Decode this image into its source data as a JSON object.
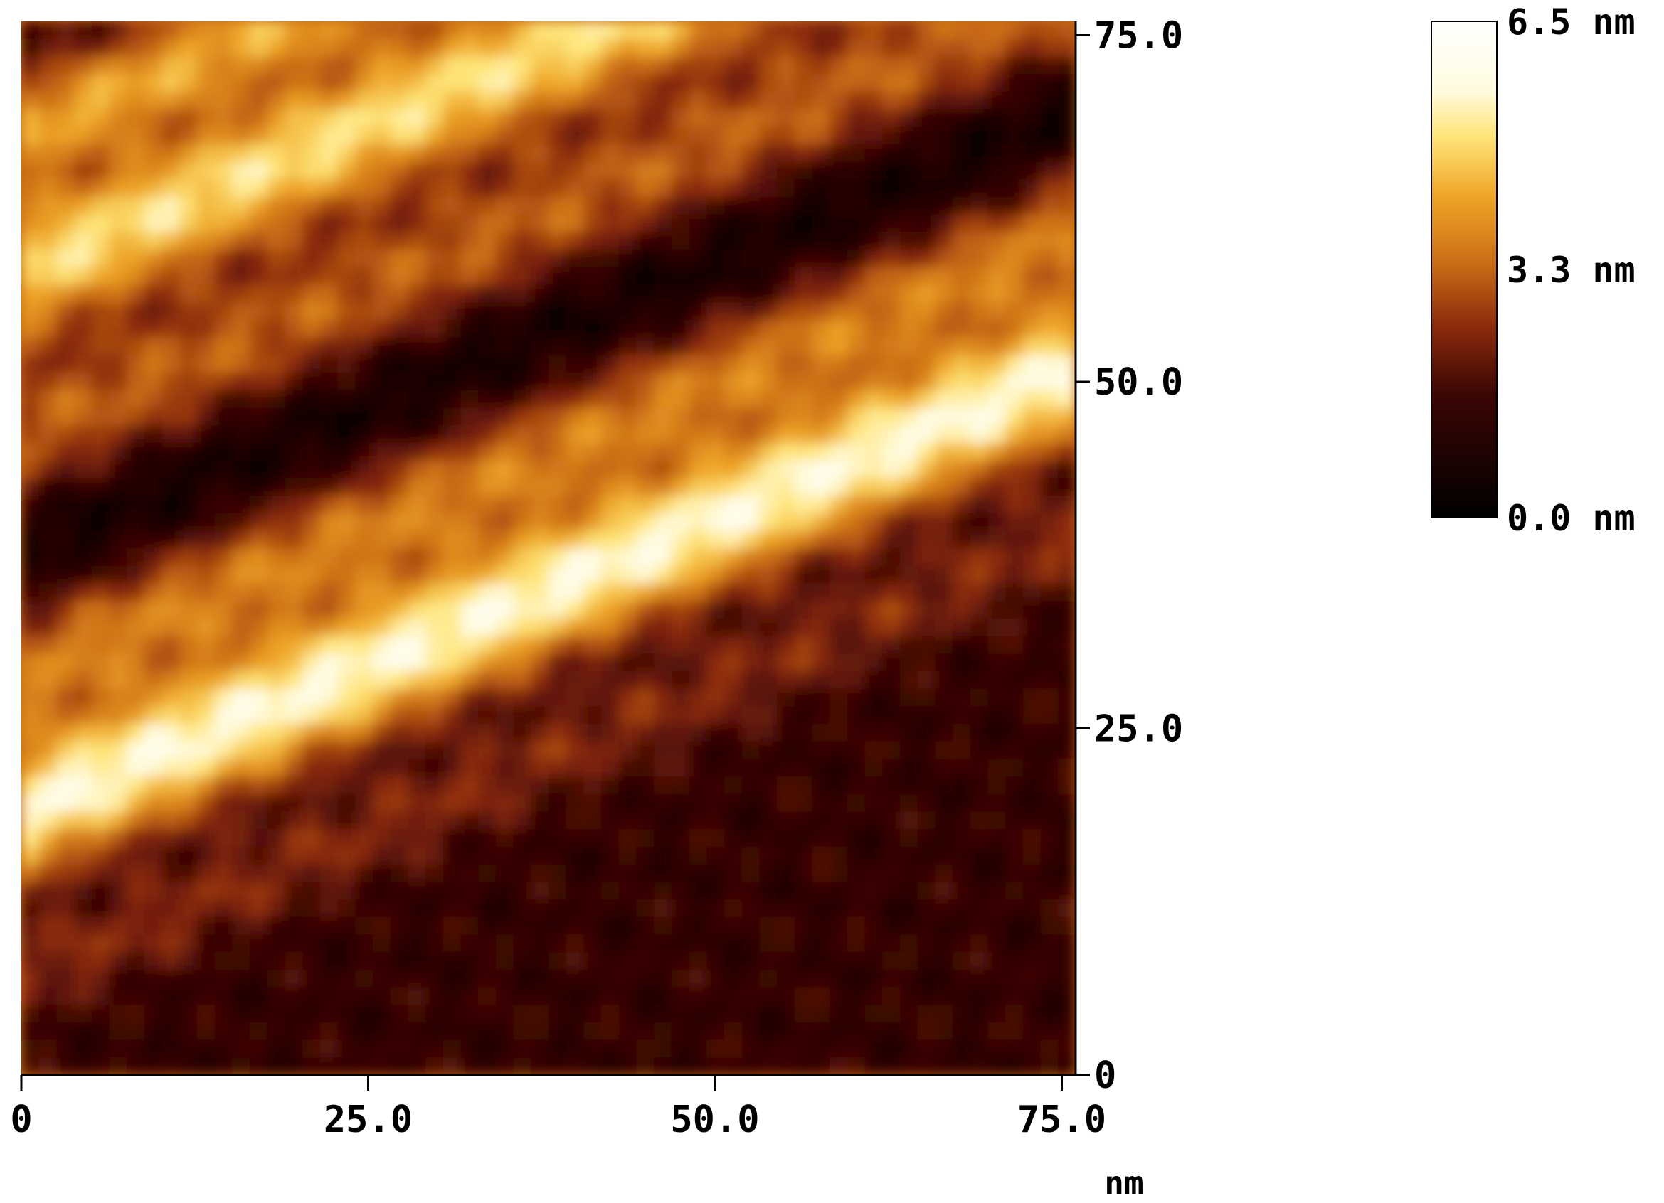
{
  "chart_data": {
    "type": "heatmap",
    "title": "",
    "x_axis": {
      "range": [
        0,
        76
      ],
      "ticks": [
        0,
        25,
        50,
        75
      ],
      "tick_labels": [
        "0",
        "25.0",
        "50.0",
        "75.0"
      ],
      "unit_label": "nm"
    },
    "y_axis": {
      "range": [
        0,
        76
      ],
      "ticks": [
        0,
        25,
        50,
        75
      ],
      "tick_labels": [
        "0",
        "25.0",
        "50.0",
        "75.0"
      ],
      "side": "right"
    },
    "colorbar": {
      "range": [
        0.0,
        6.5
      ],
      "unit": "nm",
      "labels": [
        "6.5 nm",
        "3.3 nm",
        "0.0 nm"
      ],
      "colormap": [
        {
          "value": 0.0,
          "color": "#000000"
        },
        {
          "value": 1.6,
          "color": "#3a0604"
        },
        {
          "value": 2.5,
          "color": "#8a2a0c"
        },
        {
          "value": 3.3,
          "color": "#c96a15"
        },
        {
          "value": 4.2,
          "color": "#eea526"
        },
        {
          "value": 5.0,
          "color": "#ffe57a"
        },
        {
          "value": 5.6,
          "color": "#fffbe0"
        },
        {
          "value": 6.5,
          "color": "#ffffff"
        }
      ]
    },
    "surface_features": {
      "terrace_slope": 0.42,
      "bands": [
        {
          "center": 7,
          "width": 3.5,
          "height": 2.4
        },
        {
          "center": 19,
          "width": 5.0,
          "height": 5.6
        },
        {
          "center": 29,
          "width": 4.5,
          "height": 3.6
        },
        {
          "center": 38,
          "width": 4.5,
          "height": 0.5
        },
        {
          "center": 46,
          "width": 5.0,
          "height": 3.2
        },
        {
          "center": 58,
          "width": 5.0,
          "height": 5.0
        },
        {
          "center": 68,
          "width": 4.0,
          "height": 4.2
        },
        {
          "center": 80,
          "width": 3.5,
          "height": 5.0
        }
      ],
      "baseline": 3.0
    }
  }
}
